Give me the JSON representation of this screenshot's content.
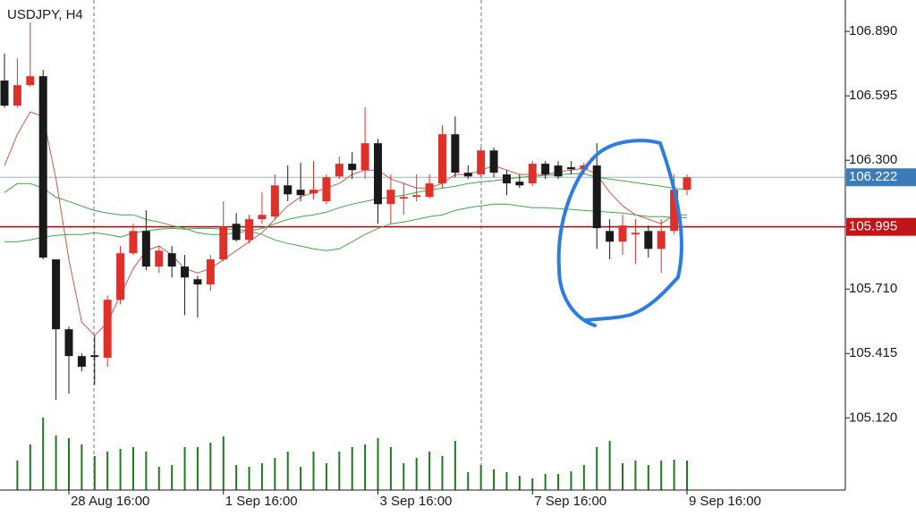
{
  "chart_data": {
    "type": "candlestick",
    "title": "USDJPY, H4",
    "categories": [
      null,
      null,
      null,
      null,
      null,
      "28 Aug 16:00",
      null,
      null,
      null,
      null,
      null,
      null,
      null,
      null,
      null,
      null,
      null,
      "1 Sep 16:00",
      null,
      null,
      null,
      null,
      null,
      null,
      null,
      null,
      null,
      null,
      null,
      "3 Sep 16:00",
      null,
      null,
      null,
      null,
      null,
      null,
      null,
      null,
      null,
      null,
      null,
      "7 Sep 16:00",
      null,
      null,
      null,
      null,
      null,
      null,
      null,
      null,
      null,
      null,
      null,
      "9 Sep 16:00"
    ],
    "open": [
      106.665,
      106.55,
      106.644,
      106.685,
      105.846,
      105.526,
      105.403,
      105.407,
      105.395,
      105.661,
      105.874,
      105.976,
      105.813,
      105.874,
      105.813,
      105.755,
      105.731,
      105.846,
      106.009,
      105.935,
      106.03,
      106.042,
      106.185,
      106.165,
      106.148,
      106.112,
      106.226,
      106.284,
      106.255,
      106.378,
      106.099,
      106.124,
      106.132,
      106.132,
      106.194,
      106.419,
      106.243,
      106.235,
      106.345,
      106.235,
      106.202,
      106.194,
      106.284,
      106.276,
      106.268,
      106.259,
      106.276,
      105.976,
      105.927,
      105.96,
      105.976,
      105.894,
      105.976,
      106.165
    ],
    "high": [
      106.788,
      106.767,
      106.931,
      106.714,
      105.846,
      105.538,
      105.415,
      105.497,
      105.681,
      105.907,
      106.009,
      106.071,
      105.907,
      105.907,
      105.866,
      105.771,
      105.866,
      106.112,
      106.058,
      106.05,
      106.153,
      106.235,
      106.276,
      106.288,
      106.296,
      106.235,
      106.317,
      106.337,
      106.542,
      106.398,
      106.235,
      106.194,
      106.235,
      106.235,
      106.46,
      106.501,
      106.276,
      106.358,
      106.358,
      106.255,
      106.235,
      106.296,
      106.296,
      106.296,
      106.296,
      106.288,
      106.378,
      106.03,
      106.05,
      106.03,
      106.001,
      106.03,
      106.235,
      106.235
    ],
    "low": [
      106.541,
      106.541,
      106.636,
      105.846,
      105.202,
      105.231,
      105.333,
      105.272,
      105.354,
      105.64,
      105.866,
      105.796,
      105.784,
      105.763,
      105.591,
      105.579,
      105.702,
      105.837,
      105.927,
      105.919,
      106.009,
      106.03,
      106.112,
      106.112,
      106.12,
      106.099,
      106.214,
      106.214,
      106.214,
      106.009,
      106.009,
      106.05,
      106.112,
      106.124,
      106.173,
      106.222,
      106.214,
      106.222,
      106.222,
      106.14,
      106.173,
      106.181,
      106.214,
      106.214,
      106.235,
      106.235,
      105.894,
      105.846,
      105.866,
      105.825,
      105.854,
      105.784,
      105.96,
      106.14
    ],
    "close": [
      106.55,
      106.644,
      106.685,
      105.854,
      105.526,
      105.403,
      105.354,
      105.399,
      105.661,
      105.874,
      105.976,
      105.813,
      105.886,
      105.813,
      105.763,
      105.731,
      105.846,
      105.997,
      105.935,
      106.03,
      106.05,
      106.185,
      106.144,
      106.14,
      106.165,
      106.222,
      106.284,
      106.255,
      106.378,
      106.099,
      106.165,
      106.132,
      106.14,
      106.194,
      106.419,
      106.243,
      106.226,
      106.345,
      106.243,
      106.194,
      106.185,
      106.284,
      106.235,
      106.226,
      106.259,
      106.276,
      105.989,
      105.927,
      106.001,
      105.968,
      105.894,
      105.976,
      106.165,
      106.222
    ],
    "up_color": "#e0302a",
    "down_color": "#1a1a1a",
    "volume": [
      null,
      33,
      51,
      81,
      61,
      58,
      51,
      38,
      43,
      46,
      48,
      43,
      26,
      28,
      48,
      48,
      53,
      60,
      28,
      26,
      30,
      36,
      43,
      26,
      43,
      30,
      43,
      48,
      51,
      58,
      48,
      30,
      36,
      43,
      38,
      55,
      20,
      28,
      23,
      20,
      16,
      13,
      18,
      18,
      21,
      28,
      48,
      55,
      30,
      33,
      28,
      33,
      34,
      33
    ],
    "volume_color": "#1f7a1f",
    "lines": [
      {
        "color": "#d0574a",
        "values": [
          106.275,
          106.419,
          106.521,
          106.501,
          106.214,
          105.845,
          105.558,
          105.497,
          105.558,
          105.681,
          105.804,
          105.886,
          105.907,
          105.866,
          105.804,
          105.784,
          105.804,
          105.845,
          105.886,
          105.927,
          105.968,
          106.03,
          106.091,
          106.132,
          106.153,
          106.173,
          106.194,
          106.235,
          106.255,
          106.255,
          106.214,
          106.194,
          106.173,
          106.173,
          106.194,
          106.235,
          106.235,
          106.255,
          106.275,
          106.255,
          106.235,
          106.235,
          106.235,
          106.247,
          106.255,
          106.263,
          106.235,
          106.153,
          106.091,
          106.05,
          106.03,
          106.009,
          106.05,
          106.05
        ]
      },
      {
        "color": "#3fa64a",
        "values": [
          106.152,
          106.193,
          106.193,
          106.172,
          106.131,
          106.111,
          106.09,
          106.07,
          106.058,
          106.05,
          106.05,
          106.029,
          106.017,
          106.001,
          105.988,
          105.968,
          105.96,
          105.96,
          105.968,
          105.976,
          105.988,
          106.009,
          106.029,
          106.042,
          106.05,
          106.062,
          106.083,
          106.099,
          106.111,
          106.123,
          106.131,
          106.14,
          106.152,
          106.165,
          106.172,
          106.181,
          106.193,
          106.201,
          106.206,
          106.214,
          106.222,
          106.226,
          106.23,
          106.234,
          106.238,
          106.238,
          106.222,
          106.214,
          106.206,
          106.197,
          106.189,
          106.181,
          106.172,
          106.165
        ]
      },
      {
        "color": "#3fa64a",
        "values": [
          105.927,
          105.927,
          105.935,
          105.948,
          105.956,
          105.96,
          105.96,
          105.968,
          105.96,
          105.948,
          105.968,
          105.976,
          105.984,
          105.988,
          105.984,
          105.988,
          105.988,
          105.984,
          105.984,
          105.976,
          105.96,
          105.935,
          105.919,
          105.907,
          105.894,
          105.886,
          105.894,
          105.927,
          105.96,
          105.988,
          106.009,
          106.017,
          106.029,
          106.042,
          106.05,
          106.07,
          106.083,
          106.091,
          106.099,
          106.099,
          106.091,
          106.083,
          106.083,
          106.079,
          106.075,
          106.07,
          106.066,
          106.062,
          106.058,
          106.05,
          106.042,
          106.042,
          106.038,
          106.038
        ]
      }
    ],
    "price_lines": [
      {
        "value": 106.222,
        "line_color": "#9fb4c6",
        "box_color": "#3d7ab8"
      },
      {
        "value": 105.995,
        "line_color": "#c00000",
        "box_color": "#c0161a"
      }
    ],
    "ylim": [
      104.9,
      107.034
    ],
    "yticks": [
      {
        "value": 106.89,
        "label": "106.890"
      },
      106.595,
      {
        "value": 106.3,
        "label": "106.300"
      },
      {
        "value": 105.71,
        "label": "105.710"
      },
      105.415,
      {
        "value": 105.12,
        "label": "105.120"
      }
    ]
  }
}
